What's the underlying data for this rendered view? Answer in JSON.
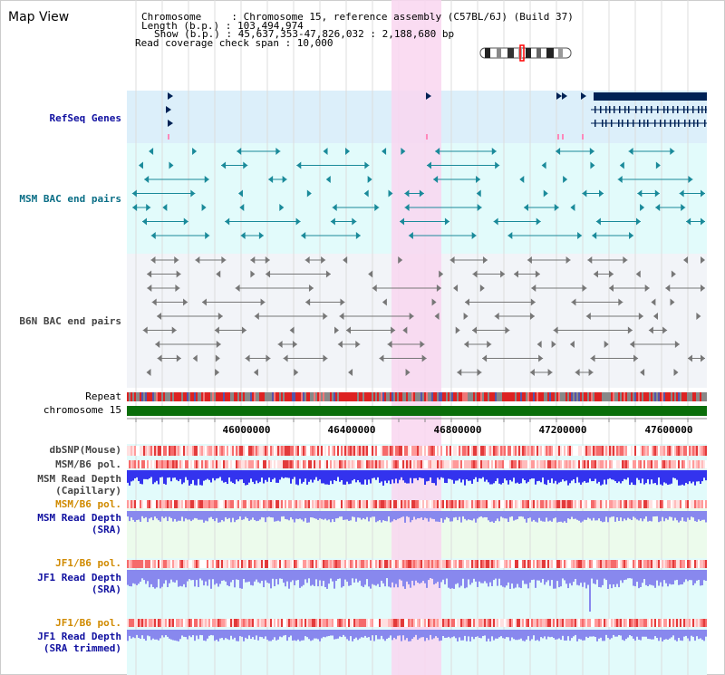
{
  "title": "Map View",
  "info": {
    "line1": "Chromosome     : Chromosome 15, reference assembly (C57BL/6J) (Build 37)",
    "line2": "Length (b.p.) : 103,494,974",
    "line3": "Show (b.p.) : 45,637,353-47,826,032 : 2,188,680 bp",
    "line4": "Read coverage check span : 10,000"
  },
  "tracks": {
    "refseq": "RefSeq Genes",
    "msm_bac": "MSM BAC end pairs",
    "b6n_bac": "B6N BAC end pairs",
    "repeat": "Repeat",
    "chromosome": "chromosome 15",
    "dbsnp": "dbSNP(Mouse)",
    "msm_pol1": "MSM/B6 pol.",
    "msm_depth_cap_1": "MSM Read Depth",
    "msm_depth_cap_2": "(Capillary)",
    "msm_pol2": "MSM/B6 pol.",
    "msm_depth_sra_1": "MSM Read Depth",
    "msm_depth_sra_2": "(SRA)",
    "jf1_pol1": "JF1/B6 pol.",
    "jf1_depth_sra_1": "JF1 Read Depth",
    "jf1_depth_sra_2": "(SRA)",
    "jf1_pol2": "JF1/B6 pol.",
    "jf1_depth_trim_1": "JF1 Read Depth",
    "jf1_depth_trim_2": "(SRA trimmed)"
  },
  "ruler": {
    "ticks": [
      "46000000",
      "46400000",
      "46800000",
      "47200000",
      "47600000"
    ]
  },
  "colors": {
    "refseq_bg": "#dceffa",
    "msm_bg": "#e2fbfb",
    "b6n_bg": "#f2f4f8",
    "highlight": "#f9dcf3",
    "gene": "#002255",
    "bac_msm": "#1a8a9a",
    "bac_b6n": "#777777",
    "chrom_bar": "#0a6e0a",
    "depth_blue": "#3333ee",
    "depth_light": "#8888ee",
    "pol_red": "#ee3333",
    "label_blue": "#1010a0",
    "label_teal": "#0a6e86",
    "label_gray": "#444444",
    "label_orange": "#d08a00"
  }
}
